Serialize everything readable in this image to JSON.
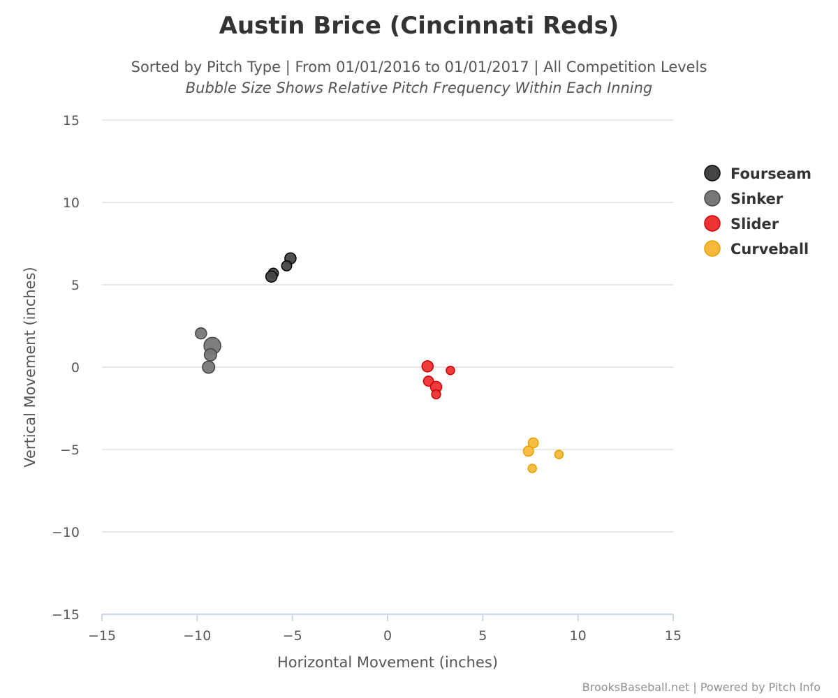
{
  "chart_data": {
    "type": "scatter",
    "title": "Austin Brice (Cincinnati Reds)",
    "subtitle": "Sorted by Pitch Type | From 01/01/2016 to 01/01/2017 | All Competition Levels",
    "subtitle2": "Bubble Size Shows Relative Pitch Frequency Within Each Inning",
    "xlabel": "Horizontal Movement (inches)",
    "ylabel": "Vertical Movement (inches)",
    "xlim": [
      -15,
      15
    ],
    "ylim": [
      -15,
      15
    ],
    "xticks": [
      -15,
      -10,
      -5,
      0,
      5,
      10,
      15
    ],
    "yticks": [
      -15,
      -10,
      -5,
      0,
      5,
      10,
      15
    ],
    "xtick_labels": [
      "−15",
      "−10",
      "−5",
      "0",
      "5",
      "10",
      "15"
    ],
    "ytick_labels": [
      "−15",
      "−10",
      "−5",
      "0",
      "5",
      "10",
      "15"
    ],
    "grid": "horizontal",
    "legend_position": "right",
    "credits": "BrooksBaseball.net | Powered by Pitch Info",
    "series": [
      {
        "name": "Fourseam",
        "color": "#444444",
        "stroke": "#000000",
        "points": [
          {
            "x": -5.1,
            "y": 6.6,
            "size": 1.0
          },
          {
            "x": -5.3,
            "y": 6.15,
            "size": 0.9
          },
          {
            "x": -6.0,
            "y": 5.7,
            "size": 0.9
          },
          {
            "x": -6.1,
            "y": 5.5,
            "size": 1.0
          }
        ]
      },
      {
        "name": "Sinker",
        "color": "#777777",
        "stroke": "#444444",
        "points": [
          {
            "x": -9.8,
            "y": 2.05,
            "size": 1.0
          },
          {
            "x": -9.2,
            "y": 1.3,
            "size": 1.5
          },
          {
            "x": -9.3,
            "y": 0.75,
            "size": 1.1
          },
          {
            "x": -9.4,
            "y": 0.0,
            "size": 1.1
          }
        ]
      },
      {
        "name": "Slider",
        "color": "#ee3333",
        "stroke": "#cc0000",
        "points": [
          {
            "x": 2.1,
            "y": 0.05,
            "size": 1.0
          },
          {
            "x": 3.3,
            "y": -0.2,
            "size": 0.75
          },
          {
            "x": 2.15,
            "y": -0.85,
            "size": 0.9
          },
          {
            "x": 2.55,
            "y": -1.2,
            "size": 1.0
          },
          {
            "x": 2.55,
            "y": -1.65,
            "size": 0.8
          }
        ]
      },
      {
        "name": "Curveball",
        "color": "#f7b93a",
        "stroke": "#e8a000",
        "points": [
          {
            "x": 7.65,
            "y": -4.6,
            "size": 0.9
          },
          {
            "x": 7.4,
            "y": -5.1,
            "size": 0.9
          },
          {
            "x": 9.0,
            "y": -5.3,
            "size": 0.75
          },
          {
            "x": 7.6,
            "y": -6.15,
            "size": 0.75
          }
        ]
      }
    ]
  }
}
